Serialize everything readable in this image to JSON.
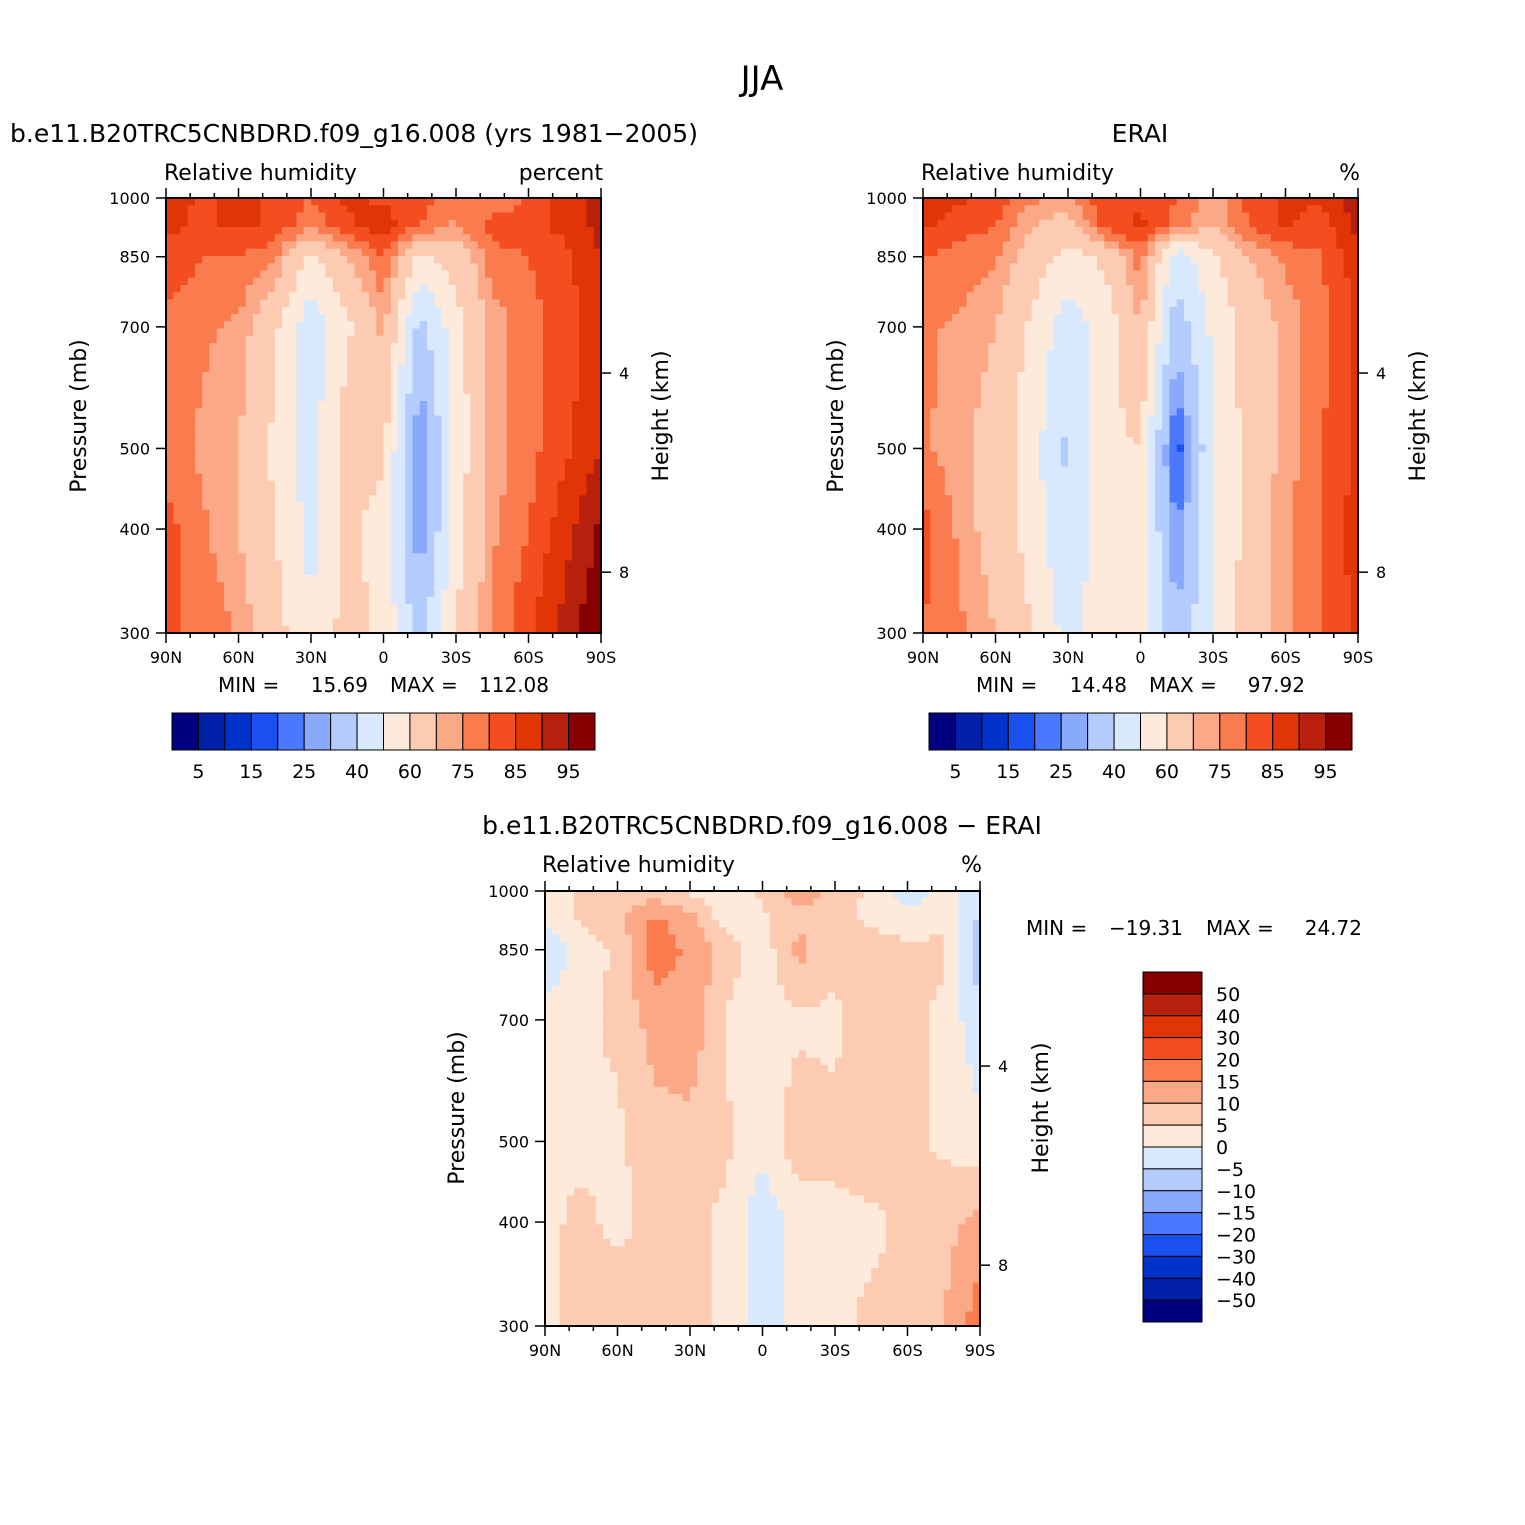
{
  "figure": {
    "title": "JJA"
  },
  "colors": {
    "rh_levels": [
      "#000080",
      "#0021a8",
      "#0033cc",
      "#1a4ff0",
      "#4a78ff",
      "#89a9fd",
      "#b4cbfd",
      "#d8e8fd",
      "#feeadb",
      "#fdcbb2",
      "#fba886",
      "#f97b4e",
      "#f44e20",
      "#e13506",
      "#b8200e",
      "#870000"
    ],
    "diff_levels": [
      "#000080",
      "#0021a8",
      "#0033cc",
      "#1a4ff0",
      "#4a78ff",
      "#89a9fd",
      "#b4cbfd",
      "#d8e8fd",
      "#feeadb",
      "#fdcbb2",
      "#fba886",
      "#f97b4e",
      "#f44e20",
      "#e13506",
      "#b8200e",
      "#870000"
    ],
    "missing": "#ffffff"
  },
  "chart_data": [
    {
      "type": "heatmap",
      "title": "b.e11.B20TRC5CNBDRD.f09_g16.008 (yrs 1981−2005)",
      "left_subtitle": "Relative humidity",
      "right_subtitle": "percent",
      "xlabel": "",
      "ylabel": "Pressure (mb)",
      "ylabel_right": "Height (km)",
      "x_ticks": [
        "90N",
        "60N",
        "30N",
        "0",
        "30S",
        "60S",
        "90S"
      ],
      "y_ticks": [
        "300",
        "400",
        "500",
        "700",
        "850",
        "1000"
      ],
      "y_right_ticks": [
        "8",
        "4"
      ],
      "stats": {
        "min_label": "MIN =",
        "min": "15.69",
        "max_label": "MAX =",
        "max": "112.08"
      },
      "colorbar_labels": [
        "5",
        "15",
        "25",
        "40",
        "60",
        "75",
        "85",
        "95"
      ],
      "levels": [
        5,
        10,
        15,
        20,
        25,
        30,
        40,
        50,
        60,
        70,
        75,
        80,
        85,
        90,
        95
      ],
      "x": [
        -90,
        90
      ],
      "y": [
        1000,
        300
      ],
      "field": {
        "base": [
          {
            "p": 1000,
            "lats": [
              -90,
              -75,
              -60,
              -45,
              -30,
              -15,
              0,
              15,
              30,
              45,
              60,
              75,
              90
            ],
            "vals": [
              92,
              88,
              80,
              76,
              78,
              82,
              84,
              86,
              80,
              84,
              86,
              84,
              88
            ]
          },
          {
            "p": 925,
            "lats": [
              -90,
              -75,
              -60,
              -45,
              -30,
              -15,
              0,
              15,
              30,
              45,
              60,
              75,
              90
            ],
            "vals": [
              92,
              86,
              84,
              82,
              74,
              80,
              88,
              84,
              76,
              84,
              86,
              84,
              86
            ]
          },
          {
            "p": 850,
            "lats": [
              -90,
              -75,
              -60,
              -45,
              -30,
              -15,
              0,
              15,
              30,
              45,
              60,
              75,
              90
            ],
            "vals": [
              90,
              84,
              80,
              78,
              64,
              58,
              80,
              70,
              58,
              76,
              80,
              80,
              84
            ]
          },
          {
            "p": 700,
            "lats": [
              -90,
              -75,
              -60,
              -45,
              -30,
              -15,
              0,
              15,
              30,
              45,
              60,
              75,
              90
            ],
            "vals": [
              88,
              82,
              78,
              72,
              56,
              36,
              72,
              58,
              42,
              62,
              74,
              76,
              78
            ]
          },
          {
            "p": 500,
            "lats": [
              -90,
              -75,
              -60,
              -45,
              -30,
              -15,
              0,
              15,
              30,
              45,
              60,
              75,
              90
            ],
            "vals": [
              90,
              84,
              78,
              72,
              54,
              22,
              62,
              66,
              46,
              58,
              70,
              74,
              78
            ]
          },
          {
            "p": 400,
            "lats": [
              -90,
              -75,
              -60,
              -45,
              -30,
              -15,
              0,
              15,
              30,
              45,
              60,
              75,
              90
            ],
            "vals": [
              96,
              88,
              80,
              74,
              56,
              24,
              56,
              62,
              46,
              60,
              70,
              76,
              82
            ]
          },
          {
            "p": 300,
            "lats": [
              -90,
              -75,
              -60,
              -45,
              -30,
              -15,
              0,
              15,
              30,
              45,
              60,
              75,
              90
            ],
            "vals": [
              100,
              92,
              84,
              76,
              60,
              36,
              58,
              64,
              52,
              64,
              74,
              80,
              80
            ]
          }
        ]
      },
      "missing_region": {
        "lat_range": [
          -90,
          -45
        ],
        "p_range": [
          930,
          1000
        ]
      }
    },
    {
      "type": "heatmap",
      "title": "ERAI",
      "left_subtitle": "Relative humidity",
      "right_subtitle": "%",
      "xlabel": "",
      "ylabel": "Pressure (mb)",
      "ylabel_right": "Height (km)",
      "x_ticks": [
        "90N",
        "60N",
        "30N",
        "0",
        "30S",
        "60S",
        "90S"
      ],
      "y_ticks": [
        "300",
        "400",
        "500",
        "700",
        "850",
        "1000"
      ],
      "y_right_ticks": [
        "8",
        "4"
      ],
      "stats": {
        "min_label": "MIN =",
        "min": "14.48",
        "max_label": "MAX =",
        "max": "97.92"
      },
      "colorbar_labels": [
        "5",
        "15",
        "25",
        "40",
        "60",
        "75",
        "85",
        "95"
      ],
      "levels": [
        5,
        10,
        15,
        20,
        25,
        30,
        40,
        50,
        60,
        70,
        75,
        80,
        85,
        90,
        95
      ],
      "x": [
        -90,
        90
      ],
      "y": [
        1000,
        300
      ],
      "field": {
        "base": [
          {
            "p": 1000,
            "lats": [
              -90,
              -75,
              -60,
              -45,
              -30,
              -15,
              0,
              15,
              30,
              45,
              60,
              75,
              90
            ],
            "vals": [
              94,
              86,
              86,
              82,
              72,
              80,
              84,
              84,
              74,
              76,
              84,
              86,
              90
            ]
          },
          {
            "p": 925,
            "lats": [
              -90,
              -75,
              -60,
              -45,
              -30,
              -15,
              0,
              15,
              30,
              45,
              60,
              75,
              90
            ],
            "vals": [
              92,
              82,
              86,
              80,
              70,
              78,
              86,
              82,
              66,
              70,
              80,
              82,
              86
            ]
          },
          {
            "p": 850,
            "lats": [
              -90,
              -75,
              -60,
              -45,
              -30,
              -15,
              0,
              15,
              30,
              45,
              60,
              75,
              90
            ],
            "vals": [
              88,
              80,
              76,
              70,
              58,
              44,
              78,
              62,
              56,
              66,
              76,
              78,
              80
            ]
          },
          {
            "p": 700,
            "lats": [
              -90,
              -75,
              -60,
              -45,
              -30,
              -15,
              0,
              15,
              30,
              45,
              60,
              75,
              90
            ],
            "vals": [
              86,
              78,
              72,
              64,
              52,
              34,
              70,
              54,
              44,
              58,
              70,
              74,
              76
            ]
          },
          {
            "p": 500,
            "lats": [
              -90,
              -75,
              -60,
              -45,
              -30,
              -15,
              0,
              15,
              30,
              45,
              60,
              75,
              90
            ],
            "vals": [
              86,
              80,
              72,
              64,
              50,
              16,
              60,
              58,
              38,
              54,
              66,
              72,
              76
            ]
          },
          {
            "p": 400,
            "lats": [
              -90,
              -75,
              -60,
              -45,
              -30,
              -15,
              0,
              15,
              30,
              45,
              60,
              75,
              90
            ],
            "vals": [
              88,
              80,
              74,
              64,
              50,
              24,
              56,
              56,
              40,
              56,
              66,
              74,
              82
            ]
          },
          {
            "p": 300,
            "lats": [
              -90,
              -75,
              -60,
              -45,
              -30,
              -15,
              0,
              15,
              30,
              45,
              60,
              75,
              90
            ],
            "vals": [
              86,
              80,
              74,
              64,
              52,
              30,
              56,
              58,
              46,
              60,
              70,
              76,
              80
            ]
          }
        ]
      }
    },
    {
      "type": "heatmap",
      "title": "b.e11.B20TRC5CNBDRD.f09_g16.008 − ERAI",
      "left_subtitle": "Relative humidity",
      "right_subtitle": "%",
      "xlabel": "",
      "ylabel": "Pressure (mb)",
      "ylabel_right": "Height (km)",
      "x_ticks": [
        "90N",
        "60N",
        "30N",
        "0",
        "30S",
        "60S",
        "90S"
      ],
      "y_ticks": [
        "300",
        "400",
        "500",
        "700",
        "850",
        "1000"
      ],
      "y_right_ticks": [
        "8",
        "4"
      ],
      "stats": {
        "min_label": "MIN =",
        "min": "−19.31",
        "max_label": "MAX =",
        "max": "24.72"
      },
      "colorbar_labels": [
        "50",
        "40",
        "30",
        "20",
        "15",
        "10",
        "5",
        "0",
        "−5",
        "−10",
        "−15",
        "−20",
        "−30",
        "−40",
        "−50"
      ],
      "levels": [
        -50,
        -40,
        -30,
        -20,
        -15,
        -10,
        -5,
        0,
        5,
        10,
        15,
        20,
        30,
        40,
        50
      ],
      "x": [
        -90,
        90
      ],
      "y": [
        1000,
        300
      ],
      "field": {
        "base": [
          {
            "p": 1000,
            "lats": [
              -90,
              -75,
              -60,
              -45,
              -30,
              -15,
              0,
              15,
              30,
              45,
              60,
              75,
              90
            ],
            "vals": [
              -2,
              2,
              -4,
              4,
              8,
              14,
              6,
              2,
              4,
              8,
              6,
              6,
              2
            ]
          },
          {
            "p": 925,
            "lats": [
              -90,
              -75,
              -60,
              -45,
              -30,
              -15,
              0,
              15,
              30,
              45,
              60,
              75,
              90
            ],
            "vals": [
              -6,
              4,
              2,
              4,
              6,
              8,
              4,
              2,
              12,
              16,
              8,
              6,
              0
            ]
          },
          {
            "p": 850,
            "lats": [
              -90,
              -75,
              -60,
              -45,
              -30,
              -15,
              0,
              15,
              30,
              45,
              60,
              75,
              90
            ],
            "vals": [
              -8,
              6,
              6,
              8,
              6,
              12,
              2,
              8,
              14,
              18,
              6,
              2,
              -4
            ]
          },
          {
            "p": 700,
            "lats": [
              -90,
              -75,
              -60,
              -45,
              -30,
              -15,
              0,
              15,
              30,
              45,
              60,
              75,
              90
            ],
            "vals": [
              -4,
              4,
              6,
              8,
              4,
              4,
              2,
              4,
              14,
              12,
              6,
              4,
              2
            ]
          },
          {
            "p": 500,
            "lats": [
              -90,
              -75,
              -60,
              -45,
              -30,
              -15,
              0,
              15,
              30,
              45,
              60,
              75,
              90
            ],
            "vals": [
              2,
              4,
              6,
              8,
              6,
              8,
              2,
              6,
              8,
              8,
              4,
              4,
              4
            ]
          },
          {
            "p": 400,
            "lats": [
              -90,
              -75,
              -60,
              -45,
              -30,
              -15,
              0,
              15,
              30,
              45,
              60,
              75,
              90
            ],
            "vals": [
              12,
              8,
              6,
              4,
              4,
              2,
              -4,
              4,
              6,
              6,
              4,
              6,
              4
            ]
          },
          {
            "p": 300,
            "lats": [
              -90,
              -75,
              -60,
              -45,
              -30,
              -15,
              0,
              15,
              30,
              45,
              60,
              75,
              90
            ],
            "vals": [
              18,
              10,
              6,
              6,
              4,
              2,
              -2,
              4,
              6,
              6,
              8,
              6,
              4
            ]
          }
        ]
      },
      "missing_region": {
        "lat_range": [
          -90,
          -45
        ],
        "p_range": [
          930,
          1000
        ]
      }
    }
  ]
}
